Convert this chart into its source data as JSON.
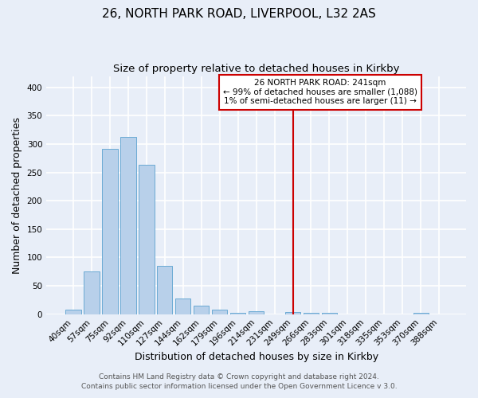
{
  "title1": "26, NORTH PARK ROAD, LIVERPOOL, L32 2AS",
  "title2": "Size of property relative to detached houses in Kirkby",
  "xlabel": "Distribution of detached houses by size in Kirkby",
  "ylabel": "Number of detached properties",
  "bar_labels": [
    "40sqm",
    "57sqm",
    "75sqm",
    "92sqm",
    "110sqm",
    "127sqm",
    "144sqm",
    "162sqm",
    "179sqm",
    "196sqm",
    "214sqm",
    "231sqm",
    "249sqm",
    "266sqm",
    "283sqm",
    "301sqm",
    "318sqm",
    "335sqm",
    "353sqm",
    "370sqm",
    "388sqm"
  ],
  "bar_values": [
    8,
    75,
    292,
    313,
    263,
    85,
    28,
    15,
    8,
    3,
    5,
    0,
    4,
    3,
    3,
    0,
    0,
    0,
    0,
    3,
    0
  ],
  "bar_color": "#b8d0ea",
  "bar_edge_color": "#6aaad4",
  "vline_color": "#cc0000",
  "ylim": [
    0,
    420
  ],
  "yticks": [
    0,
    50,
    100,
    150,
    200,
    250,
    300,
    350,
    400
  ],
  "annotation_title": "26 NORTH PARK ROAD: 241sqm",
  "annotation_line1": "← 99% of detached houses are smaller (1,088)",
  "annotation_line2": "1% of semi-detached houses are larger (11) →",
  "annotation_box_color": "#cc0000",
  "footer1": "Contains HM Land Registry data © Crown copyright and database right 2024.",
  "footer2": "Contains public sector information licensed under the Open Government Licence v 3.0.",
  "bg_color": "#e8eef8",
  "grid_color": "#ffffff",
  "title_fontsize": 11,
  "subtitle_fontsize": 9.5,
  "axis_label_fontsize": 9,
  "tick_fontsize": 7.5,
  "footer_fontsize": 6.5
}
